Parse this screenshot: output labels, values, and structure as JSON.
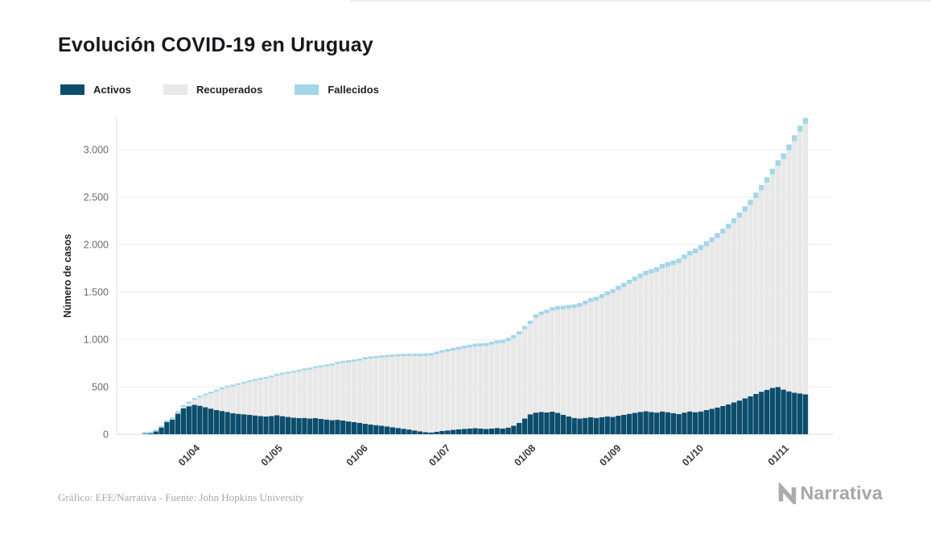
{
  "page": {
    "footer_credit": "Gráfico: EFE/Narrativa - Fuente: John Hopkins University",
    "brand": "Narrativa"
  },
  "chart_data": {
    "type": "bar",
    "subtype": "stacked-daily-bars",
    "title": "Evolución COVID-19 en Uruguay",
    "xlabel": "",
    "ylabel": "Número de casos",
    "legend_position": "top-left",
    "grid": "horizontal",
    "legend": [
      {
        "key": "activos",
        "label": "Activos"
      },
      {
        "key": "recuperados",
        "label": "Recuperados"
      },
      {
        "key": "fallecidos",
        "label": "Fallecidos"
      }
    ],
    "colors": {
      "activos": "#0c4d6c",
      "recuperados": "#e8e8e8",
      "fallecidos": "#a3d6e9"
    },
    "ylim": [
      0,
      3350
    ],
    "yticks": [
      0,
      500,
      1000,
      1500,
      2000,
      2500,
      3000
    ],
    "ytick_labels": [
      "0",
      "500",
      "1.000",
      "1.500",
      "2.000",
      "2.500",
      "3.000"
    ],
    "xticks": [
      "01/04",
      "01/05",
      "01/06",
      "01/07",
      "01/08",
      "01/09",
      "01/10",
      "01/11"
    ],
    "points_format": [
      "date",
      "activos",
      "recuperados",
      "fallecidos"
    ],
    "points": [
      [
        "13/03",
        4,
        0,
        0
      ],
      [
        "15/03",
        8,
        0,
        0
      ],
      [
        "17/03",
        29,
        0,
        0
      ],
      [
        "19/03",
        70,
        0,
        0
      ],
      [
        "21/03",
        128,
        0,
        0
      ],
      [
        "23/03",
        155,
        3,
        0
      ],
      [
        "25/03",
        217,
        8,
        1
      ],
      [
        "27/03",
        274,
        15,
        1
      ],
      [
        "29/03",
        295,
        30,
        1
      ],
      [
        "31/03",
        310,
        52,
        2
      ],
      [
        "02/04",
        300,
        88,
        5
      ],
      [
        "04/04",
        285,
        125,
        6
      ],
      [
        "06/04",
        270,
        160,
        7
      ],
      [
        "08/04",
        255,
        196,
        7
      ],
      [
        "10/04",
        245,
        228,
        8
      ],
      [
        "12/04",
        235,
        257,
        8
      ],
      [
        "14/04",
        222,
        283,
        9
      ],
      [
        "16/04",
        215,
        305,
        10
      ],
      [
        "18/04",
        210,
        325,
        10
      ],
      [
        "20/04",
        205,
        345,
        12
      ],
      [
        "22/04",
        198,
        365,
        14
      ],
      [
        "24/04",
        192,
        383,
        15
      ],
      [
        "26/04",
        188,
        398,
        16
      ],
      [
        "28/04",
        192,
        408,
        17
      ],
      [
        "30/04",
        200,
        418,
        17
      ],
      [
        "02/05",
        190,
        440,
        17
      ],
      [
        "04/05",
        182,
        458,
        18
      ],
      [
        "06/05",
        175,
        474,
        18
      ],
      [
        "08/05",
        170,
        490,
        19
      ],
      [
        "10/05",
        172,
        502,
        19
      ],
      [
        "12/05",
        165,
        516,
        20
      ],
      [
        "14/05",
        170,
        528,
        20
      ],
      [
        "16/05",
        162,
        544,
        20
      ],
      [
        "18/05",
        155,
        560,
        21
      ],
      [
        "20/05",
        148,
        576,
        21
      ],
      [
        "22/05",
        152,
        590,
        21
      ],
      [
        "24/05",
        145,
        606,
        22
      ],
      [
        "26/05",
        135,
        622,
        22
      ],
      [
        "28/05",
        128,
        638,
        22
      ],
      [
        "30/05",
        120,
        655,
        23
      ],
      [
        "01/06",
        110,
        680,
        23
      ],
      [
        "03/06",
        102,
        694,
        23
      ],
      [
        "05/06",
        96,
        706,
        23
      ],
      [
        "07/06",
        90,
        718,
        24
      ],
      [
        "09/06",
        82,
        730,
        24
      ],
      [
        "11/06",
        74,
        742,
        24
      ],
      [
        "13/06",
        66,
        754,
        24
      ],
      [
        "15/06",
        58,
        764,
        25
      ],
      [
        "17/06",
        50,
        774,
        25
      ],
      [
        "19/06",
        40,
        784,
        25
      ],
      [
        "21/06",
        30,
        794,
        25
      ],
      [
        "23/06",
        22,
        804,
        26
      ],
      [
        "25/06",
        18,
        812,
        26
      ],
      [
        "27/06",
        26,
        818,
        27
      ],
      [
        "29/06",
        35,
        824,
        27
      ],
      [
        "01/07",
        40,
        830,
        28
      ],
      [
        "03/07",
        46,
        836,
        28
      ],
      [
        "05/07",
        52,
        842,
        28
      ],
      [
        "07/07",
        56,
        848,
        29
      ],
      [
        "09/07",
        60,
        854,
        29
      ],
      [
        "11/07",
        64,
        860,
        30
      ],
      [
        "13/07",
        60,
        868,
        30
      ],
      [
        "15/07",
        55,
        876,
        31
      ],
      [
        "17/07",
        60,
        884,
        31
      ],
      [
        "19/07",
        66,
        892,
        32
      ],
      [
        "21/07",
        60,
        902,
        32
      ],
      [
        "23/07",
        70,
        912,
        33
      ],
      [
        "25/07",
        90,
        922,
        33
      ],
      [
        "27/07",
        120,
        932,
        34
      ],
      [
        "29/07",
        165,
        942,
        34
      ],
      [
        "31/07",
        210,
        952,
        35
      ],
      [
        "02/08",
        228,
        998,
        36
      ],
      [
        "04/08",
        235,
        1022,
        36
      ],
      [
        "06/08",
        230,
        1046,
        37
      ],
      [
        "08/08",
        238,
        1064,
        37
      ],
      [
        "10/08",
        225,
        1088,
        38
      ],
      [
        "12/08",
        205,
        1112,
        38
      ],
      [
        "14/08",
        188,
        1136,
        39
      ],
      [
        "16/08",
        172,
        1158,
        39
      ],
      [
        "18/08",
        165,
        1178,
        40
      ],
      [
        "20/08",
        172,
        1196,
        40
      ],
      [
        "22/08",
        180,
        1214,
        41
      ],
      [
        "24/08",
        172,
        1236,
        41
      ],
      [
        "26/08",
        180,
        1256,
        42
      ],
      [
        "28/08",
        188,
        1276,
        42
      ],
      [
        "30/08",
        182,
        1304,
        43
      ],
      [
        "01/09",
        195,
        1325,
        44
      ],
      [
        "03/09",
        205,
        1346,
        44
      ],
      [
        "05/09",
        215,
        1368,
        45
      ],
      [
        "07/09",
        225,
        1390,
        45
      ],
      [
        "09/09",
        235,
        1412,
        45
      ],
      [
        "11/09",
        242,
        1434,
        46
      ],
      [
        "13/09",
        235,
        1460,
        46
      ],
      [
        "15/09",
        228,
        1486,
        46
      ],
      [
        "17/09",
        240,
        1508,
        47
      ],
      [
        "19/09",
        232,
        1534,
        47
      ],
      [
        "21/09",
        222,
        1562,
        47
      ],
      [
        "23/09",
        212,
        1592,
        48
      ],
      [
        "25/09",
        228,
        1618,
        48
      ],
      [
        "27/09",
        240,
        1644,
        48
      ],
      [
        "29/09",
        232,
        1676,
        49
      ],
      [
        "01/10",
        240,
        1702,
        49
      ],
      [
        "03/10",
        255,
        1728,
        50
      ],
      [
        "05/10",
        268,
        1756,
        50
      ],
      [
        "07/10",
        282,
        1786,
        51
      ],
      [
        "09/10",
        298,
        1818,
        51
      ],
      [
        "11/10",
        315,
        1852,
        52
      ],
      [
        "13/10",
        335,
        1888,
        53
      ],
      [
        "15/10",
        355,
        1928,
        53
      ],
      [
        "17/10",
        378,
        1970,
        54
      ],
      [
        "19/10",
        400,
        2016,
        55
      ],
      [
        "21/10",
        425,
        2066,
        56
      ],
      [
        "23/10",
        448,
        2122,
        57
      ],
      [
        "25/10",
        468,
        2184,
        57
      ],
      [
        "27/10",
        488,
        2252,
        58
      ],
      [
        "29/10",
        498,
        2330,
        59
      ],
      [
        "31/10",
        470,
        2430,
        60
      ],
      [
        "02/11",
        452,
        2540,
        61
      ],
      [
        "04/11",
        438,
        2650,
        62
      ],
      [
        "06/11",
        430,
        2760,
        62
      ],
      [
        "08/11",
        420,
        2850,
        63
      ]
    ]
  }
}
